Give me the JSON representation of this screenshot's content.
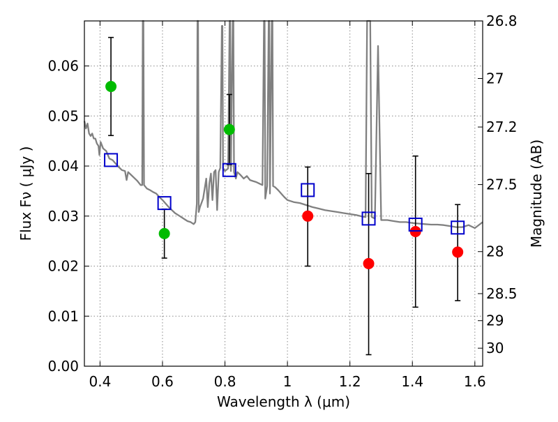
{
  "chart_data": {
    "type": "scatter",
    "xlabel": "Wavelength  λ (μm)",
    "ylabel": "Flux  Fν  ( μJy )",
    "y2label": "Magnitude (AB)",
    "xlim": [
      0.35,
      1.625
    ],
    "ylim": [
      0.0,
      0.069
    ],
    "grid": true,
    "x_ticks": [
      {
        "value": 0.4,
        "label": "0.4"
      },
      {
        "value": 0.6,
        "label": "0.6"
      },
      {
        "value": 0.8,
        "label": "0.8"
      },
      {
        "value": 1.0,
        "label": "1"
      },
      {
        "value": 1.2,
        "label": "1.2"
      },
      {
        "value": 1.4,
        "label": "1.4"
      },
      {
        "value": 1.6,
        "label": "1.6"
      }
    ],
    "y_ticks": [
      {
        "value": 0.0,
        "label": "0.00"
      },
      {
        "value": 0.01,
        "label": "0.01"
      },
      {
        "value": 0.02,
        "label": "0.02"
      },
      {
        "value": 0.03,
        "label": "0.03"
      },
      {
        "value": 0.04,
        "label": "0.04"
      },
      {
        "value": 0.05,
        "label": "0.05"
      },
      {
        "value": 0.06,
        "label": "0.06"
      }
    ],
    "y2_ticks": [
      {
        "flux": 0.069,
        "label": "26.8"
      },
      {
        "flux": 0.0575,
        "label": "27"
      },
      {
        "flux": 0.0478,
        "label": "27.2"
      },
      {
        "flux": 0.0363,
        "label": "27.5"
      },
      {
        "flux": 0.0229,
        "label": "28"
      },
      {
        "flux": 0.0145,
        "label": "28.5"
      },
      {
        "flux": 0.0091,
        "label": "29"
      },
      {
        "flux": 0.0036,
        "label": "30"
      }
    ],
    "series": [
      {
        "kind": "observed-green",
        "color": "#00bb00",
        "points": [
          {
            "x": 0.435,
            "y": 0.0559,
            "err_low": 0.0461,
            "err_high": 0.0657
          },
          {
            "x": 0.606,
            "y": 0.0265,
            "err_low": 0.0216,
            "err_high": 0.0314
          },
          {
            "x": 0.814,
            "y": 0.0473,
            "err_low": 0.0403,
            "err_high": 0.0543
          }
        ]
      },
      {
        "kind": "observed-red",
        "color": "#ff0000",
        "points": [
          {
            "x": 1.065,
            "y": 0.03,
            "err_low": 0.02,
            "err_high": 0.0398
          },
          {
            "x": 1.26,
            "y": 0.0205,
            "err_low": 0.0023,
            "err_high": 0.0385
          },
          {
            "x": 1.41,
            "y": 0.0269,
            "err_low": 0.0118,
            "err_high": 0.042
          },
          {
            "x": 1.545,
            "y": 0.0228,
            "err_low": 0.0131,
            "err_high": 0.0323
          }
        ]
      },
      {
        "kind": "model-photometry",
        "color": "#0000cc",
        "points": [
          {
            "x": 0.435,
            "y": 0.0412
          },
          {
            "x": 0.606,
            "y": 0.0326
          },
          {
            "x": 0.814,
            "y": 0.0392
          },
          {
            "x": 1.065,
            "y": 0.0352
          },
          {
            "x": 1.26,
            "y": 0.0295
          },
          {
            "x": 1.41,
            "y": 0.0283
          },
          {
            "x": 1.545,
            "y": 0.0277
          }
        ]
      }
    ],
    "model_spectrum": {
      "color": "#808080",
      "points": [
        [
          0.35,
          0.049
        ],
        [
          0.355,
          0.0475
        ],
        [
          0.36,
          0.0485
        ],
        [
          0.365,
          0.0465
        ],
        [
          0.37,
          0.046
        ],
        [
          0.375,
          0.0465
        ],
        [
          0.38,
          0.0455
        ],
        [
          0.385,
          0.0455
        ],
        [
          0.39,
          0.0445
        ],
        [
          0.395,
          0.044
        ],
        [
          0.398,
          0.0422
        ],
        [
          0.402,
          0.0448
        ],
        [
          0.41,
          0.0435
        ],
        [
          0.42,
          0.043
        ],
        [
          0.43,
          0.0415
        ],
        [
          0.44,
          0.0412
        ],
        [
          0.45,
          0.0405
        ],
        [
          0.46,
          0.0398
        ],
        [
          0.47,
          0.0392
        ],
        [
          0.48,
          0.039
        ],
        [
          0.485,
          0.0372
        ],
        [
          0.49,
          0.0388
        ],
        [
          0.5,
          0.0382
        ],
        [
          0.51,
          0.0376
        ],
        [
          0.52,
          0.037
        ],
        [
          0.53,
          0.0362
        ],
        [
          0.535,
          0.0362
        ],
        [
          0.537,
          0.069
        ],
        [
          0.539,
          0.069
        ],
        [
          0.541,
          0.0362
        ],
        [
          0.55,
          0.0355
        ],
        [
          0.56,
          0.0352
        ],
        [
          0.57,
          0.0348
        ],
        [
          0.58,
          0.0345
        ],
        [
          0.59,
          0.0338
        ],
        [
          0.6,
          0.0332
        ],
        [
          0.61,
          0.0325
        ],
        [
          0.62,
          0.0318
        ],
        [
          0.63,
          0.0312
        ],
        [
          0.64,
          0.0306
        ],
        [
          0.65,
          0.0302
        ],
        [
          0.66,
          0.0298
        ],
        [
          0.67,
          0.0294
        ],
        [
          0.68,
          0.029
        ],
        [
          0.69,
          0.0288
        ],
        [
          0.7,
          0.0284
        ],
        [
          0.705,
          0.0288
        ],
        [
          0.71,
          0.0325
        ],
        [
          0.712,
          0.069
        ],
        [
          0.714,
          0.069
        ],
        [
          0.716,
          0.0308
        ],
        [
          0.72,
          0.0318
        ],
        [
          0.73,
          0.0335
        ],
        [
          0.74,
          0.0375
        ],
        [
          0.745,
          0.0318
        ],
        [
          0.75,
          0.0365
        ],
        [
          0.755,
          0.0385
        ],
        [
          0.76,
          0.0332
        ],
        [
          0.765,
          0.0388
        ],
        [
          0.77,
          0.0392
        ],
        [
          0.775,
          0.0312
        ],
        [
          0.78,
          0.0388
        ],
        [
          0.785,
          0.0396
        ],
        [
          0.79,
          0.068
        ],
        [
          0.792,
          0.068
        ],
        [
          0.794,
          0.0395
        ],
        [
          0.8,
          0.039
        ],
        [
          0.81,
          0.0395
        ],
        [
          0.815,
          0.069
        ],
        [
          0.817,
          0.069
        ],
        [
          0.819,
          0.039
        ],
        [
          0.825,
          0.069
        ],
        [
          0.827,
          0.069
        ],
        [
          0.829,
          0.0388
        ],
        [
          0.835,
          0.0375
        ],
        [
          0.84,
          0.0388
        ],
        [
          0.85,
          0.0382
        ],
        [
          0.86,
          0.0375
        ],
        [
          0.87,
          0.038
        ],
        [
          0.88,
          0.0372
        ],
        [
          0.89,
          0.037
        ],
        [
          0.9,
          0.0368
        ],
        [
          0.91,
          0.0365
        ],
        [
          0.92,
          0.0362
        ],
        [
          0.925,
          0.069
        ],
        [
          0.927,
          0.069
        ],
        [
          0.929,
          0.0335
        ],
        [
          0.935,
          0.036
        ],
        [
          0.94,
          0.069
        ],
        [
          0.942,
          0.069
        ],
        [
          0.944,
          0.0345
        ],
        [
          0.95,
          0.069
        ],
        [
          0.952,
          0.069
        ],
        [
          0.954,
          0.036
        ],
        [
          0.96,
          0.0358
        ],
        [
          0.97,
          0.0352
        ],
        [
          0.98,
          0.0345
        ],
        [
          0.99,
          0.0338
        ],
        [
          1.0,
          0.0332
        ],
        [
          1.02,
          0.0328
        ],
        [
          1.04,
          0.0326
        ],
        [
          1.06,
          0.0322
        ],
        [
          1.08,
          0.0318
        ],
        [
          1.1,
          0.0315
        ],
        [
          1.12,
          0.0312
        ],
        [
          1.14,
          0.031
        ],
        [
          1.16,
          0.0308
        ],
        [
          1.18,
          0.0306
        ],
        [
          1.2,
          0.0304
        ],
        [
          1.22,
          0.0302
        ],
        [
          1.24,
          0.0299
        ],
        [
          1.25,
          0.0298
        ],
        [
          1.255,
          0.069
        ],
        [
          1.265,
          0.069
        ],
        [
          1.27,
          0.0298
        ],
        [
          1.28,
          0.0295
        ],
        [
          1.29,
          0.064
        ],
        [
          1.3,
          0.0292
        ],
        [
          1.32,
          0.0292
        ],
        [
          1.34,
          0.029
        ],
        [
          1.36,
          0.0288
        ],
        [
          1.38,
          0.0288
        ],
        [
          1.4,
          0.0286
        ],
        [
          1.42,
          0.0285
        ],
        [
          1.44,
          0.0284
        ],
        [
          1.46,
          0.0283
        ],
        [
          1.48,
          0.0283
        ],
        [
          1.5,
          0.0282
        ],
        [
          1.52,
          0.028
        ],
        [
          1.54,
          0.0278
        ],
        [
          1.56,
          0.0278
        ],
        [
          1.58,
          0.0282
        ],
        [
          1.6,
          0.0276
        ],
        [
          1.625,
          0.0288
        ]
      ]
    }
  }
}
